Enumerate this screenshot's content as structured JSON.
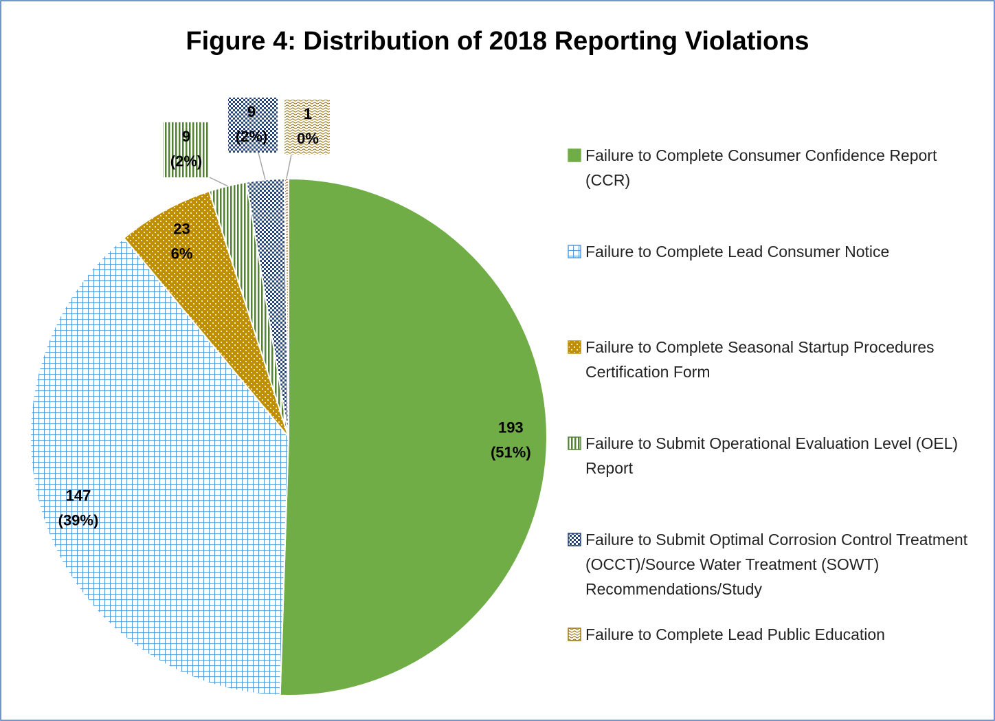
{
  "chart_data": {
    "type": "pie",
    "title": "Figure 4: Distribution of 2018 Reporting Violations",
    "categories": [
      "Failure to Complete Consumer Confidence Report (CCR)",
      "Failure to Complete Lead Consumer Notice",
      "Failure to Complete Seasonal Startup Procedures Certification Form",
      "Failure to Submit Operational Evaluation Level (OEL) Report",
      "Failure to Submit Optimal Corrosion Control Treatment (OCCT)/Source Water Treatment (SOWT) Recommendations/Study",
      "Failure to Complete Lead Public Education"
    ],
    "values": [
      193,
      147,
      23,
      9,
      9,
      1
    ],
    "percent_labels": [
      "(51%)",
      "(39%)",
      "6%",
      "(2%)",
      "(2%)",
      "0%"
    ],
    "colors": [
      "#70ad47",
      "#5b9bd5",
      "#bf8f00",
      "#548235",
      "#264478",
      "#9e7a14"
    ],
    "legend": "right"
  }
}
